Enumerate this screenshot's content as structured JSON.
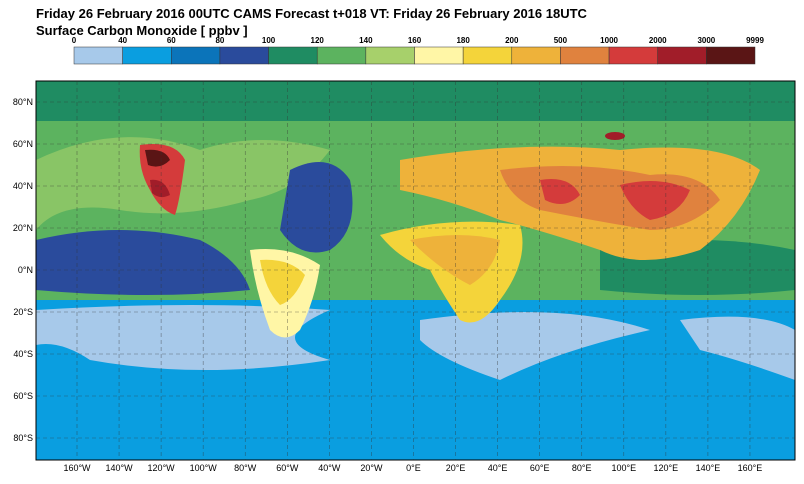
{
  "header": {
    "title": "Friday 26 February 2016 00UTC CAMS Forecast t+018 VT: Friday 26 February 2016 18UTC",
    "subtitle": "Surface Carbon Monoxide [ ppbv ]"
  },
  "colorbar": {
    "labels": [
      "0",
      "40",
      "60",
      "80",
      "100",
      "120",
      "140",
      "160",
      "180",
      "200",
      "500",
      "1000",
      "2000",
      "3000",
      "9999"
    ],
    "colors": [
      "#a7c9ea",
      "#0a9ee0",
      "#0b74ba",
      "#2a4b9c",
      "#1f8c62",
      "#5cb35f",
      "#a7d06b",
      "#fff6a6",
      "#f4d43a",
      "#eeb23a",
      "#e0823e",
      "#d43b3b",
      "#a11d29",
      "#5a1515"
    ]
  },
  "map": {
    "lat_labels": [
      "80°N",
      "60°N",
      "40°N",
      "20°N",
      "0°N",
      "20°S",
      "40°S",
      "60°S",
      "80°S"
    ],
    "lon_labels": [
      "160°W",
      "140°W",
      "120°W",
      "100°W",
      "80°W",
      "60°W",
      "40°W",
      "20°W",
      "0°E",
      "20°E",
      "40°E",
      "60°E",
      "80°E",
      "100°E",
      "120°E",
      "140°E",
      "160°E"
    ]
  }
}
